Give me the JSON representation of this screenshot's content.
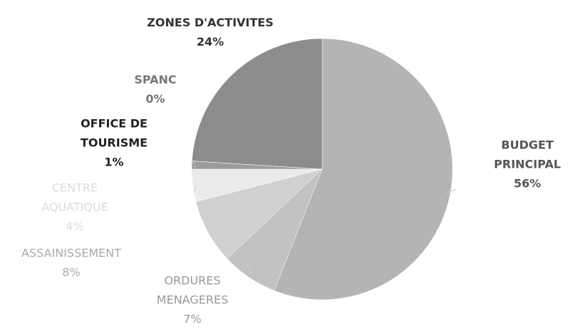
{
  "chart_data": {
    "type": "pie",
    "categories": [
      "BUDGET PRINCIPAL",
      "ORDURES MENAGERES",
      "ASSAINISSEMENT",
      "CENTRE AQUATIQUE",
      "OFFICE DE TOURISME",
      "SPANC",
      "ZONES D'ACTIVITES"
    ],
    "values": [
      56,
      7,
      8,
      4,
      1,
      0,
      24
    ],
    "value_labels": [
      "56%",
      "7%",
      "8%",
      "4%",
      "1%",
      "0%",
      "24%"
    ],
    "colors": [
      "#b4b4b4",
      "#c2c2c2",
      "#d0d0d0",
      "#ebebeb",
      "#9c9c9c",
      "#8a8a8a",
      "#8c8c8c"
    ]
  }
}
